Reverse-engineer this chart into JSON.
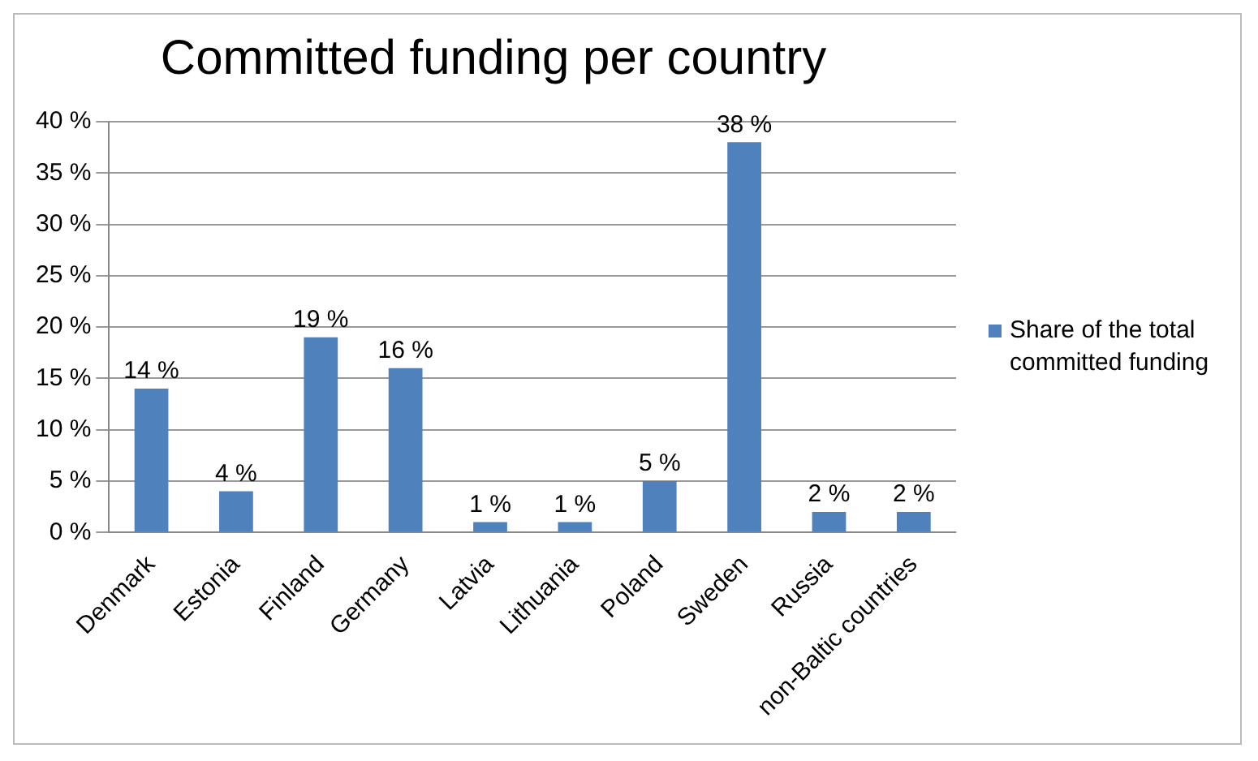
{
  "chart_data": {
    "type": "bar",
    "title": "Committed funding per country",
    "categories": [
      "Denmark",
      "Estonia",
      "Finland",
      "Germany",
      "Latvia",
      "Lithuania",
      "Poland",
      "Sweden",
      "Russia",
      "non-Baltic countries"
    ],
    "series": [
      {
        "name": "Share of the total committed funding",
        "color": "#4f81bd",
        "values": [
          14,
          4,
          19,
          16,
          1,
          1,
          5,
          38,
          2,
          2
        ],
        "value_labels": [
          "14 %",
          "4 %",
          "19 %",
          "16 %",
          "1 %",
          "1 %",
          "5 %",
          "38 %",
          "2 %",
          "2 %"
        ]
      }
    ],
    "ylim": [
      0,
      40
    ],
    "yticks": [
      {
        "value": 0,
        "label": "0 %"
      },
      {
        "value": 5,
        "label": "5 %"
      },
      {
        "value": 10,
        "label": "10 %"
      },
      {
        "value": 15,
        "label": "15 %"
      },
      {
        "value": 20,
        "label": "20 %"
      },
      {
        "value": 25,
        "label": "25 %"
      },
      {
        "value": 30,
        "label": "30 %"
      },
      {
        "value": 35,
        "label": "35 %"
      },
      {
        "value": 40,
        "label": "40 %"
      }
    ],
    "grid": "y",
    "legend": "right"
  }
}
